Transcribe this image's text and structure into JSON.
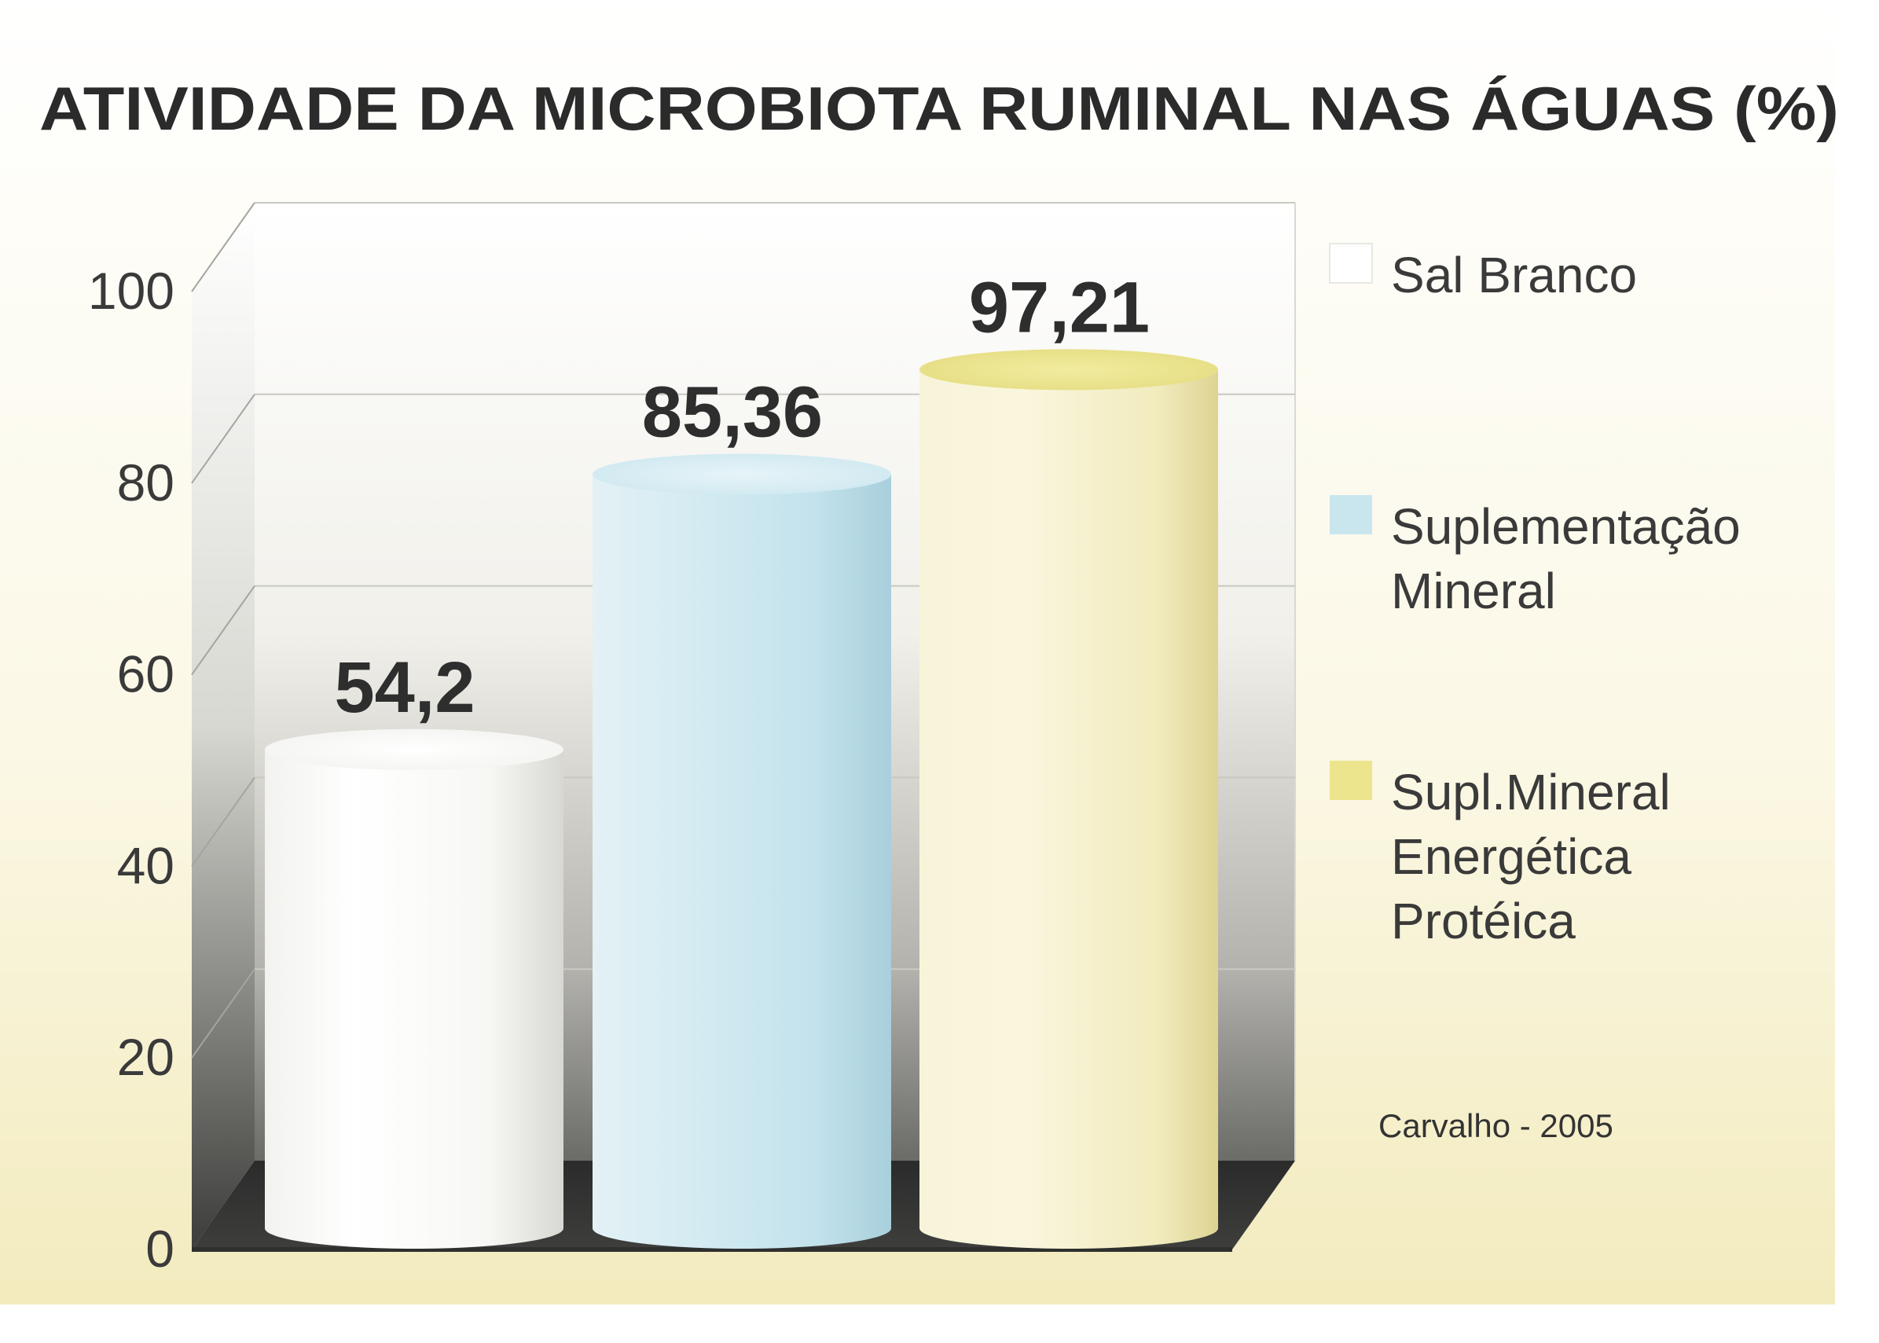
{
  "chart_data": {
    "type": "bar",
    "title": "ATIVIDADE DA MICROBIOTA RUMINAL NAS ÁGUAS (%)",
    "xlabel": "",
    "ylabel": "",
    "ylim": [
      0,
      100
    ],
    "yticks": [
      0,
      20,
      40,
      60,
      80,
      100
    ],
    "grid": true,
    "legend_position": "right",
    "categories": [
      "Sal Branco",
      "Suplementação Mineral",
      "Supl.Mineral Energética Protéica"
    ],
    "values": [
      54.2,
      85.36,
      97.21
    ],
    "value_labels": [
      "54,2",
      "85,36",
      "97,21"
    ],
    "legend": [
      {
        "lines": [
          "Sal Branco"
        ],
        "color": "#ffffff"
      },
      {
        "lines": [
          "Suplementação",
          "Mineral"
        ],
        "color": "#c9e6ef"
      },
      {
        "lines": [
          "Supl.Mineral",
          "Energética",
          "Protéica"
        ],
        "color": "#ece58e"
      }
    ],
    "source": "Carvalho - 2005"
  }
}
